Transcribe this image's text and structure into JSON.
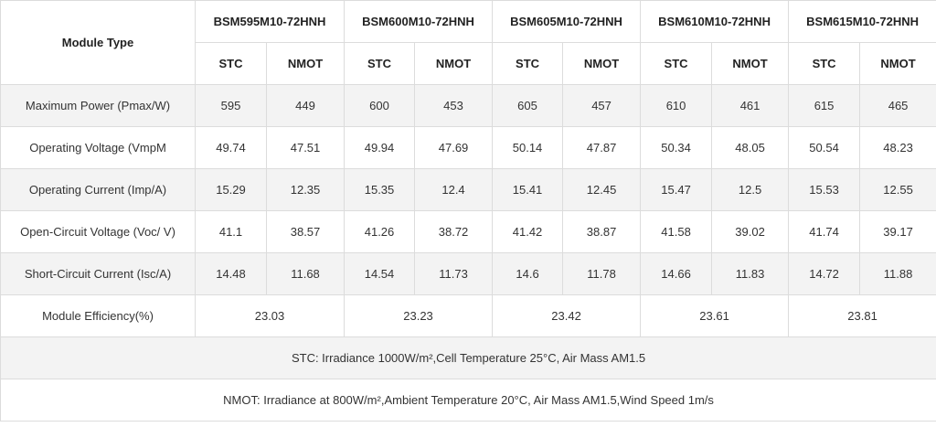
{
  "table": {
    "corner": "Module Type",
    "models": [
      "BSM595M10-72HNH",
      "BSM600M10-72HNH",
      "BSM605M10-72HNH",
      "BSM610M10-72HNH",
      "BSM615M10-72HNH"
    ],
    "conditions": [
      "STC",
      "NMOT"
    ],
    "rows": [
      {
        "label": "Maximum Power (Pmax/W)",
        "values": [
          "595",
          "449",
          "600",
          "453",
          "605",
          "457",
          "610",
          "461",
          "615",
          "465"
        ]
      },
      {
        "label": "Operating Voltage (VmpM",
        "values": [
          "49.74",
          "47.51",
          "49.94",
          "47.69",
          "50.14",
          "47.87",
          "50.34",
          "48.05",
          "50.54",
          "48.23"
        ]
      },
      {
        "label": "Operating Current (Imp/A)",
        "values": [
          "15.29",
          "12.35",
          "15.35",
          "12.4",
          "15.41",
          "12.45",
          "15.47",
          "12.5",
          "15.53",
          "12.55"
        ]
      },
      {
        "label": "Open-Circuit Voltage (Voc/ V)",
        "values": [
          "41.1",
          "38.57",
          "41.26",
          "38.72",
          "41.42",
          "38.87",
          "41.58",
          "39.02",
          "41.74",
          "39.17"
        ]
      },
      {
        "label": "Short-Circuit Current (Isc/A)",
        "values": [
          "14.48",
          "11.68",
          "14.54",
          "11.73",
          "14.6",
          "11.78",
          "14.66",
          "11.83",
          "14.72",
          "11.88"
        ]
      }
    ],
    "efficiency": {
      "label": "Module Efficiency(%)",
      "values": [
        "23.03",
        "23.23",
        "23.42",
        "23.61",
        "23.81"
      ]
    },
    "notes": [
      "STC: Irradiance 1000W/m²,Cell Temperature 25°C, Air Mass AM1.5",
      "NMOT: Irradiance at 800W/m²,Ambient Temperature 20°C, Air Mass AM1.5,Wind Speed 1m/s"
    ]
  }
}
